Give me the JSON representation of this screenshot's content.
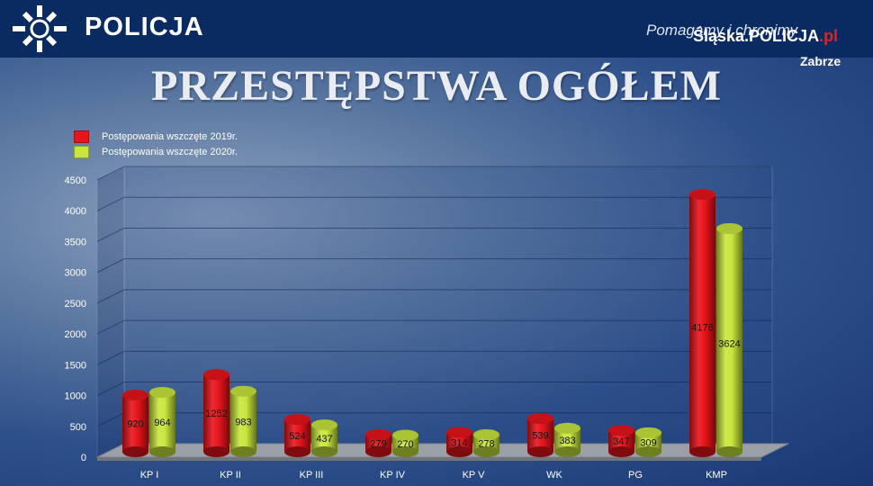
{
  "header": {
    "logo_text": "POLICJA",
    "slogan": "Pomagamy i chronimy",
    "site_main": "Śląska.POLICJA",
    "site_suffix": ".pl",
    "city": "Zabrze"
  },
  "colors": {
    "series_2019": "#e8141b",
    "series_2020": "#c8e63c",
    "header_bg": "#0a2a62"
  },
  "chart_data": {
    "type": "bar",
    "title": "PRZESTĘPSTWA OGÓŁEM",
    "categories": [
      "KP I",
      "KP II",
      "KP III",
      "KP IV",
      "KP V",
      "WK",
      "PG",
      "KMP"
    ],
    "series": [
      {
        "name": "Postępowania wszczęte 2019r.",
        "values": [
          920,
          1252,
          524,
          279,
          314,
          539,
          347,
          4176
        ]
      },
      {
        "name": "Postępowania wszczęte 2020r.",
        "values": [
          964,
          983,
          437,
          270,
          278,
          383,
          309,
          3624
        ]
      }
    ],
    "ylim": [
      0,
      4500
    ],
    "yticks": [
      "0",
      "500",
      "1000",
      "1500",
      "2000",
      "2500",
      "3000",
      "3500",
      "4000",
      "4500"
    ],
    "grid": true,
    "legend_position": "top-left",
    "style": "3d-cylinder"
  }
}
